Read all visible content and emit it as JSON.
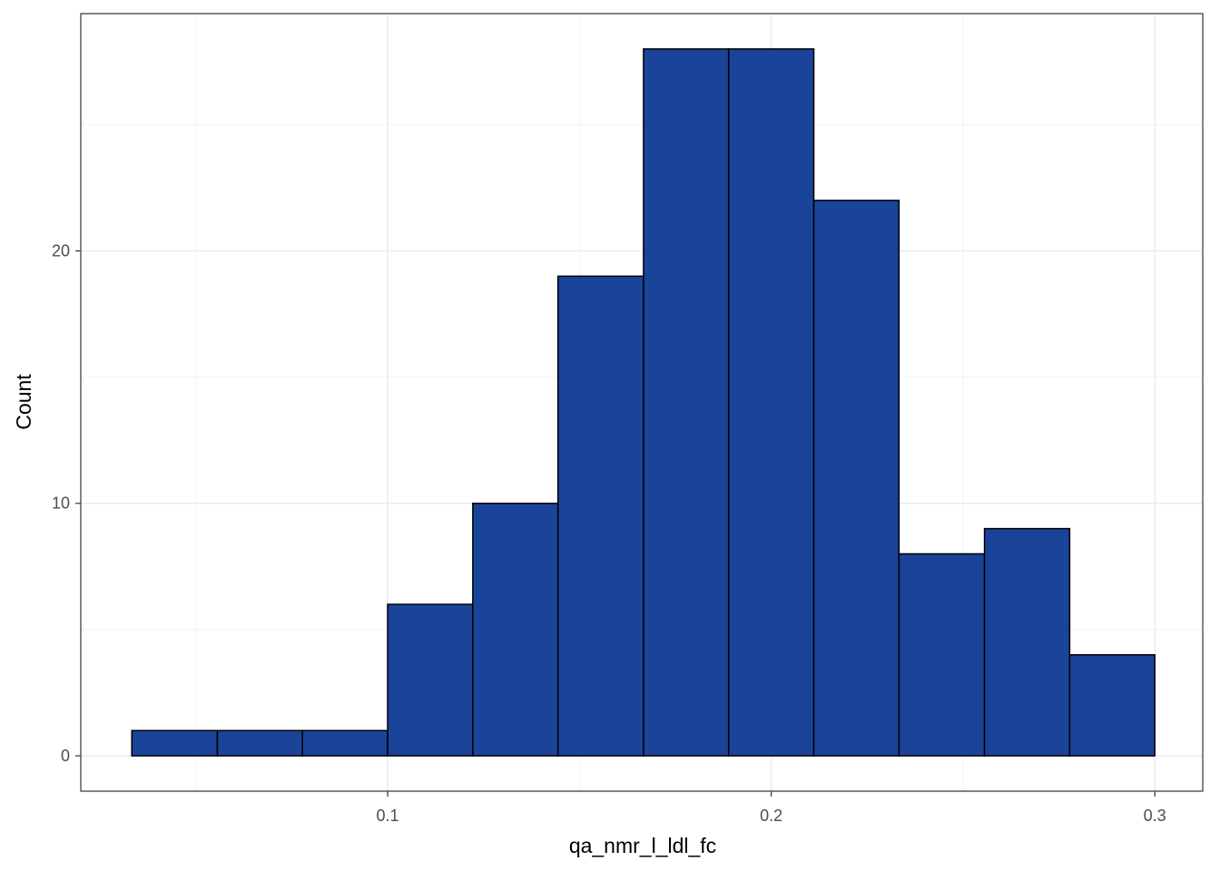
{
  "chart_data": {
    "type": "histogram",
    "x_label": "qa_nmr_l_ldl_fc",
    "y_label": "Count",
    "bins": [
      0.0333,
      0.0556,
      0.0778,
      0.1,
      0.1222,
      0.1444,
      0.1667,
      0.1889,
      0.2111,
      0.2333,
      0.2556,
      0.2778,
      0.3
    ],
    "values": [
      1,
      1,
      1,
      6,
      10,
      19,
      28,
      28,
      22,
      8,
      9,
      4
    ],
    "color": "#1a4499",
    "edge_color": "#000000",
    "xlim": [
      0.02,
      0.3125
    ],
    "ylim": [
      -1.4,
      29.4
    ],
    "xticks": [
      0.1,
      0.2,
      0.3
    ],
    "yticks": [
      0,
      10,
      20
    ],
    "x_minor_grid": [
      0.05,
      0.15,
      0.25
    ],
    "y_minor_grid": [
      5,
      15,
      25
    ],
    "grid": true
  }
}
